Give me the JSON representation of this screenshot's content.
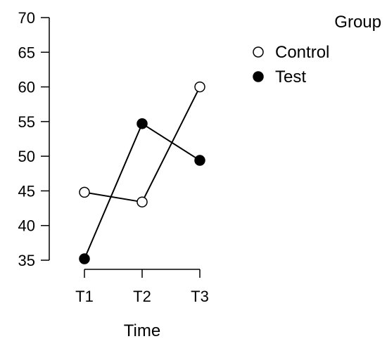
{
  "chart_data": {
    "type": "line",
    "xlabel": "Time",
    "ylabel": "",
    "categories": [
      "T1",
      "T2",
      "T3"
    ],
    "ylim": [
      35,
      70
    ],
    "yticks": [
      35,
      40,
      45,
      50,
      55,
      60,
      65,
      70
    ],
    "grid": false,
    "legend": {
      "title": "Group",
      "position": "top-right"
    },
    "series": [
      {
        "name": "Control",
        "values": [
          44.8,
          43.4,
          60.0
        ],
        "marker": "open-circle",
        "color": "#000000"
      },
      {
        "name": "Test",
        "values": [
          35.2,
          54.7,
          49.4
        ],
        "marker": "filled-circle",
        "color": "#000000"
      }
    ]
  }
}
